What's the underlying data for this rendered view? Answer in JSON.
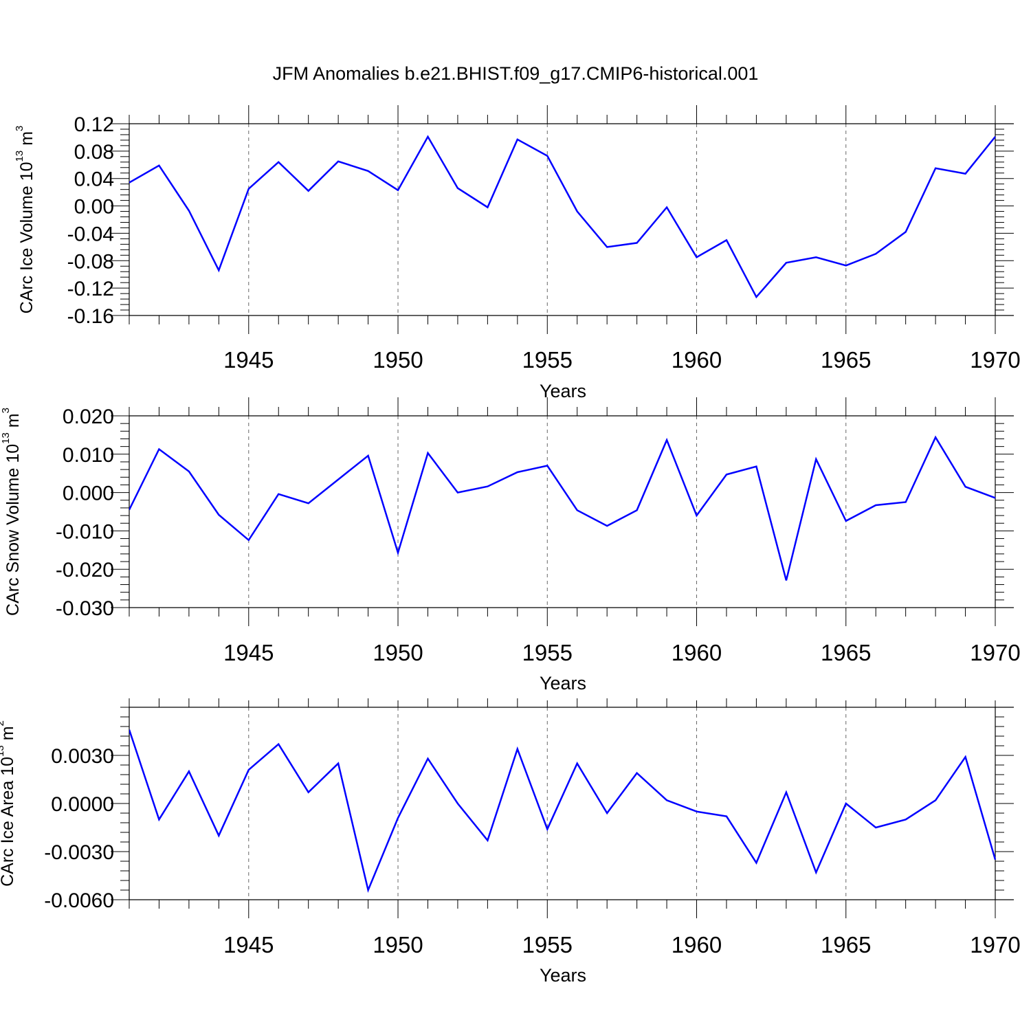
{
  "title": "JFM Anomalies b.e21.BHIST.f09_g17.CMIP6-historical.001",
  "colors": {
    "series": "#0000ff",
    "frame": "#000000",
    "grid": "#666666"
  },
  "chart_data": [
    {
      "type": "line",
      "ylabel": {
        "text": "CArc Ice Volume 10",
        "exp": "13",
        "unit": " m",
        "unit_exp": "3"
      },
      "xlabel": "Years",
      "xlim": [
        1941,
        1970
      ],
      "ylim": [
        -0.16,
        0.12
      ],
      "x_ticks": [
        1945,
        1950,
        1955,
        1960,
        1965,
        1970
      ],
      "y_ticks": [
        0.12,
        0.08,
        0.04,
        0.0,
        -0.04,
        -0.08,
        -0.12,
        -0.16
      ],
      "y_tick_labels": [
        "0.12",
        "0.08",
        "0.04",
        "0.00",
        "-0.04",
        "-0.08",
        "-0.12",
        "-0.16"
      ],
      "grid": "vertical dashed at labeled years",
      "x": [
        1941,
        1942,
        1943,
        1944,
        1945,
        1946,
        1947,
        1948,
        1949,
        1950,
        1951,
        1952,
        1953,
        1954,
        1955,
        1956,
        1957,
        1958,
        1959,
        1960,
        1961,
        1962,
        1963,
        1964,
        1965,
        1966,
        1967,
        1968,
        1969,
        1970
      ],
      "values": [
        0.034,
        0.059,
        -0.007,
        -0.094,
        0.025,
        0.064,
        0.022,
        0.065,
        0.051,
        0.023,
        0.101,
        0.026,
        -0.002,
        0.097,
        0.073,
        -0.008,
        -0.06,
        -0.054,
        -0.002,
        -0.075,
        -0.05,
        -0.133,
        -0.083,
        -0.075,
        -0.087,
        -0.07,
        -0.038,
        0.055,
        0.047,
        0.101
      ]
    },
    {
      "type": "line",
      "ylabel": {
        "text": "CArc Snow Volume 10",
        "exp": "13",
        "unit": " m",
        "unit_exp": "3"
      },
      "xlabel": "Years",
      "xlim": [
        1941,
        1970
      ],
      "ylim": [
        -0.03,
        0.02
      ],
      "x_ticks": [
        1945,
        1950,
        1955,
        1960,
        1965,
        1970
      ],
      "y_ticks": [
        0.02,
        0.01,
        0.0,
        -0.01,
        -0.02,
        -0.03
      ],
      "y_tick_labels": [
        "0.020",
        "0.010",
        "0.000",
        "-0.010",
        "-0.020",
        "-0.030"
      ],
      "grid": "vertical dashed at labeled years",
      "x": [
        1941,
        1942,
        1943,
        1944,
        1945,
        1946,
        1947,
        1948,
        1949,
        1950,
        1951,
        1952,
        1953,
        1954,
        1955,
        1956,
        1957,
        1958,
        1959,
        1960,
        1961,
        1962,
        1963,
        1964,
        1965,
        1966,
        1967,
        1968,
        1969,
        1970
      ],
      "values": [
        -0.0045,
        0.0113,
        0.0055,
        -0.0058,
        -0.0124,
        -0.0004,
        -0.0028,
        0.0034,
        0.0096,
        -0.0157,
        0.0103,
        0.0,
        0.0016,
        0.0053,
        0.007,
        -0.0046,
        -0.0087,
        -0.0046,
        0.0137,
        -0.006,
        0.0047,
        0.0068,
        -0.0229,
        0.0087,
        -0.0074,
        -0.0033,
        -0.0025,
        0.0144,
        0.0015,
        -0.0014
      ]
    },
    {
      "type": "line",
      "ylabel": {
        "text": "CArc Ice Area 10",
        "exp": "13",
        "unit": " m",
        "unit_exp": "2"
      },
      "xlabel": "Years",
      "xlim": [
        1941,
        1970
      ],
      "ylim": [
        -0.006,
        0.006
      ],
      "x_ticks": [
        1945,
        1950,
        1955,
        1960,
        1965,
        1970
      ],
      "y_ticks": [
        0.003,
        0.0,
        -0.003,
        -0.006
      ],
      "y_tick_labels": [
        "0.0030",
        "0.0000",
        "-0.0030",
        "-0.0060"
      ],
      "grid": "vertical dashed at labeled years",
      "x": [
        1941,
        1942,
        1943,
        1944,
        1945,
        1946,
        1947,
        1948,
        1949,
        1950,
        1951,
        1952,
        1953,
        1954,
        1955,
        1956,
        1957,
        1958,
        1959,
        1960,
        1961,
        1962,
        1963,
        1964,
        1965,
        1966,
        1967,
        1968,
        1969,
        1970
      ],
      "values": [
        0.0046,
        -0.001,
        0.002,
        -0.002,
        0.0021,
        0.0037,
        0.0007,
        0.0025,
        -0.0054,
        -0.0009,
        0.0028,
        0.0,
        -0.0023,
        0.0034,
        -0.0016,
        0.0025,
        -0.0006,
        0.0019,
        0.0002,
        -0.0005,
        -0.0008,
        -0.0037,
        0.0007,
        -0.0043,
        0.0,
        -0.0015,
        -0.001,
        0.0002,
        0.0029,
        -0.0035
      ]
    }
  ]
}
